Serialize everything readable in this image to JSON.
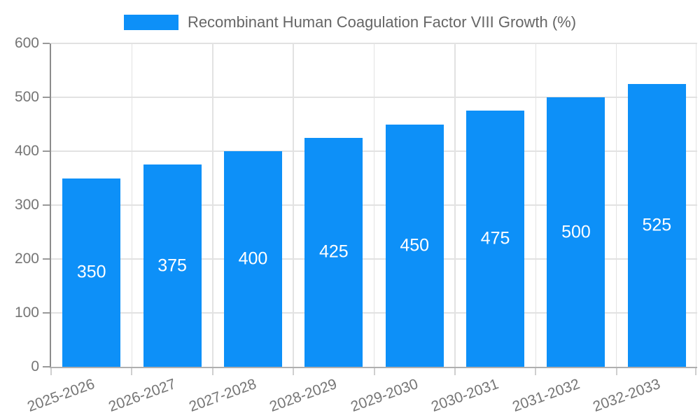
{
  "legend": {
    "label": "Recombinant Human Coagulation Factor VIII Growth (%)"
  },
  "chart_data": {
    "type": "bar",
    "title": "Recombinant Human Coagulation Factor VIII Growth (%)",
    "xlabel": "",
    "ylabel": "",
    "categories": [
      "2025-2026",
      "2026-2027",
      "2027-2028",
      "2028-2029",
      "2029-2030",
      "2030-2031",
      "2031-2032",
      "2032-2033"
    ],
    "values": [
      350,
      375,
      400,
      425,
      450,
      475,
      500,
      525
    ],
    "value_labels": [
      "350",
      "375",
      "400",
      "425",
      "450",
      "475",
      "500",
      "525"
    ],
    "ytick_labels": [
      "0",
      "100",
      "200",
      "300",
      "400",
      "500",
      "600"
    ],
    "ylim": [
      0,
      600
    ],
    "ytick_step": 100,
    "grid": true,
    "legend_position": "top-center",
    "x_label_rotation_deg": -20,
    "colors": {
      "bar": "#0D90F8",
      "bar_label_text": "#FFFFFF",
      "axis_text": "#757575",
      "legend_text": "#666666",
      "grid_line": "#E2E2E2",
      "y_axis_line": "#8C8C8C",
      "x_axis_line": "#AFAFAF",
      "y_tick": "#999999",
      "x_tick": "#CFCFCF"
    }
  }
}
